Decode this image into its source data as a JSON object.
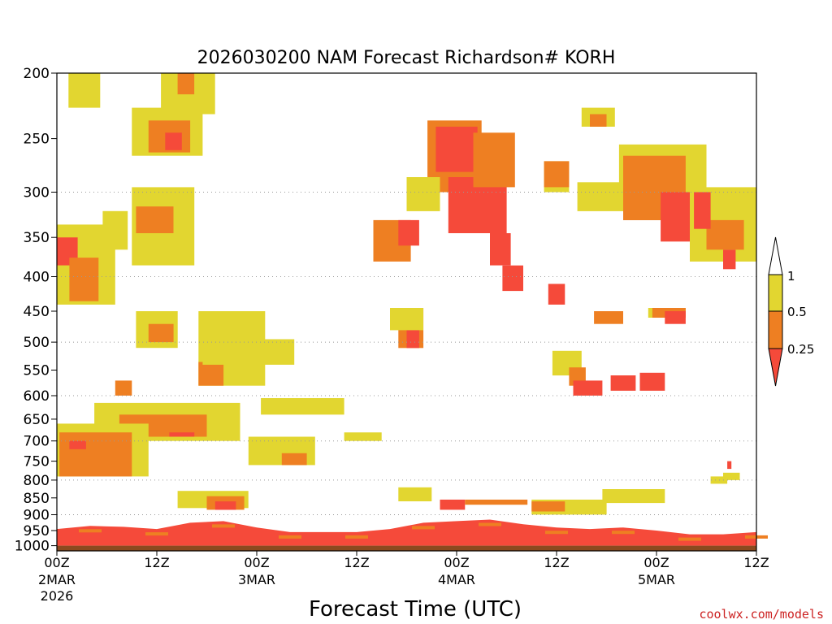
{
  "chart_data": {
    "type": "heatmap",
    "title": "2026030200 NAM Forecast Richardson# KORH",
    "xlabel": "Forecast Time (UTC)",
    "ylabel": "",
    "y_axis": {
      "reversed": true,
      "ylim": [
        1000,
        200
      ],
      "tick_labels": [
        "200",
        "250",
        "300",
        "350",
        "400",
        "450",
        "500",
        "550",
        "600",
        "650",
        "700",
        "750",
        "800",
        "850",
        "900",
        "950",
        "1000"
      ],
      "gridlines_at": [
        300,
        400,
        500,
        600,
        700,
        800,
        900
      ]
    },
    "x_axis": {
      "xlim_hours": [
        0,
        84
      ],
      "ticks": [
        {
          "hour": 0,
          "label": "00Z",
          "sub": "2MAR",
          "sub2": "2026"
        },
        {
          "hour": 12,
          "label": "12Z",
          "sub": "",
          "sub2": ""
        },
        {
          "hour": 24,
          "label": "00Z",
          "sub": "3MAR",
          "sub2": ""
        },
        {
          "hour": 36,
          "label": "12Z",
          "sub": "",
          "sub2": ""
        },
        {
          "hour": 48,
          "label": "00Z",
          "sub": "4MAR",
          "sub2": ""
        },
        {
          "hour": 60,
          "label": "12Z",
          "sub": "",
          "sub2": ""
        },
        {
          "hour": 72,
          "label": "00Z",
          "sub": "5MAR",
          "sub2": ""
        },
        {
          "hour": 84,
          "label": "12Z",
          "sub": "",
          "sub2": ""
        }
      ]
    },
    "colorbar": {
      "levels": [
        "1",
        "0.5",
        "0.25"
      ],
      "colors": {
        "high": "#ffffff",
        "mid_high": "#e2d630",
        "mid_low": "#ee7f22",
        "low": "#f54a3a",
        "ground": "#8b4a1f"
      }
    },
    "regions": [
      {
        "level": "yellow",
        "h0": 1.4,
        "h1": 5.2,
        "p0": 200,
        "p1": 225
      },
      {
        "level": "yellow",
        "h0": 9,
        "h1": 17.5,
        "p0": 225,
        "p1": 265
      },
      {
        "level": "orange",
        "h0": 11,
        "h1": 16,
        "p0": 235,
        "p1": 262
      },
      {
        "level": "red",
        "h0": 13,
        "h1": 15,
        "p0": 245,
        "p1": 260
      },
      {
        "level": "yellow",
        "h0": 12.5,
        "h1": 19,
        "p0": 200,
        "p1": 230
      },
      {
        "level": "orange",
        "h0": 14.5,
        "h1": 16.5,
        "p0": 200,
        "p1": 215
      },
      {
        "level": "yellow",
        "h0": 9,
        "h1": 16.5,
        "p0": 295,
        "p1": 385
      },
      {
        "level": "orange",
        "h0": 9.5,
        "h1": 14,
        "p0": 315,
        "p1": 345
      },
      {
        "level": "yellow",
        "h0": 0,
        "h1": 7,
        "p0": 335,
        "p1": 440
      },
      {
        "level": "red",
        "h0": 0,
        "h1": 2.5,
        "p0": 350,
        "p1": 385
      },
      {
        "level": "orange",
        "h0": 1.5,
        "h1": 5,
        "p0": 375,
        "p1": 435
      },
      {
        "level": "yellow",
        "h0": 5.5,
        "h1": 8.5,
        "p0": 320,
        "p1": 365
      },
      {
        "level": "yellow",
        "h0": 9.5,
        "h1": 14.5,
        "p0": 450,
        "p1": 510
      },
      {
        "level": "orange",
        "h0": 11,
        "h1": 14,
        "p0": 470,
        "p1": 500
      },
      {
        "level": "yellow",
        "h0": 17,
        "h1": 25,
        "p0": 450,
        "p1": 580
      },
      {
        "level": "orange",
        "h0": 17,
        "h1": 20,
        "p0": 535,
        "p1": 580
      },
      {
        "level": "yellow",
        "h0": 17.5,
        "h1": 28.5,
        "p0": 495,
        "p1": 540
      },
      {
        "level": "yellow",
        "h0": 24.5,
        "h1": 34.5,
        "p0": 605,
        "p1": 640
      },
      {
        "level": "yellow",
        "h0": 4.5,
        "h1": 22,
        "p0": 615,
        "p1": 700
      },
      {
        "level": "orange",
        "h0": 7.5,
        "h1": 18,
        "p0": 640,
        "p1": 690
      },
      {
        "level": "red",
        "h0": 13.5,
        "h1": 16.5,
        "p0": 680,
        "p1": 690
      },
      {
        "level": "yellow",
        "h0": 0,
        "h1": 11,
        "p0": 660,
        "p1": 790
      },
      {
        "level": "orange",
        "h0": 0.3,
        "h1": 9,
        "p0": 680,
        "p1": 790
      },
      {
        "level": "red",
        "h0": 1.5,
        "h1": 3.5,
        "p0": 700,
        "p1": 720
      },
      {
        "level": "yellow",
        "h0": 23,
        "h1": 31,
        "p0": 690,
        "p1": 760
      },
      {
        "level": "orange",
        "h0": 27,
        "h1": 30,
        "p0": 730,
        "p1": 760
      },
      {
        "level": "yellow",
        "h0": 34.5,
        "h1": 39,
        "p0": 680,
        "p1": 700
      },
      {
        "level": "yellow",
        "h0": 14.5,
        "h1": 23,
        "p0": 830,
        "p1": 880
      },
      {
        "level": "orange",
        "h0": 18,
        "h1": 22.5,
        "p0": 845,
        "p1": 885
      },
      {
        "level": "red",
        "h0": 19,
        "h1": 21.5,
        "p0": 860,
        "p1": 885
      },
      {
        "level": "orange",
        "h0": 44.5,
        "h1": 51,
        "p0": 235,
        "p1": 300
      },
      {
        "level": "red",
        "h0": 45.5,
        "h1": 50.5,
        "p0": 240,
        "p1": 280
      },
      {
        "level": "red",
        "h0": 47,
        "h1": 54,
        "p0": 285,
        "p1": 345
      },
      {
        "level": "orange",
        "h0": 50,
        "h1": 55,
        "p0": 245,
        "p1": 295
      },
      {
        "level": "red",
        "h0": 52,
        "h1": 54.5,
        "p0": 345,
        "p1": 385
      },
      {
        "level": "orange",
        "h0": 38,
        "h1": 42.5,
        "p0": 330,
        "p1": 380
      },
      {
        "level": "red",
        "h0": 41,
        "h1": 43.5,
        "p0": 330,
        "p1": 360
      },
      {
        "level": "yellow",
        "h0": 42,
        "h1": 46,
        "p0": 285,
        "p1": 320
      },
      {
        "level": "orange",
        "h0": 41,
        "h1": 44,
        "p0": 445,
        "p1": 510
      },
      {
        "level": "red",
        "h0": 42,
        "h1": 43.5,
        "p0": 460,
        "p1": 510
      },
      {
        "level": "yellow",
        "h0": 40,
        "h1": 44,
        "p0": 445,
        "p1": 480
      },
      {
        "level": "red",
        "h0": 53.5,
        "h1": 56,
        "p0": 385,
        "p1": 420
      },
      {
        "level": "yellow",
        "h0": 58.5,
        "h1": 61.5,
        "p0": 270,
        "p1": 300
      },
      {
        "level": "orange",
        "h0": 58.5,
        "h1": 61.5,
        "p0": 270,
        "p1": 295
      },
      {
        "level": "red",
        "h0": 59,
        "h1": 61,
        "p0": 410,
        "p1": 440
      },
      {
        "level": "yellow",
        "h0": 63,
        "h1": 67,
        "p0": 225,
        "p1": 240
      },
      {
        "level": "orange",
        "h0": 64,
        "h1": 66,
        "p0": 230,
        "p1": 240
      },
      {
        "level": "yellow",
        "h0": 62.5,
        "h1": 72,
        "p0": 290,
        "p1": 320
      },
      {
        "level": "yellow",
        "h0": 67.5,
        "h1": 78,
        "p0": 255,
        "p1": 310
      },
      {
        "level": "orange",
        "h0": 68,
        "h1": 75.5,
        "p0": 265,
        "p1": 330
      },
      {
        "level": "red",
        "h0": 72.5,
        "h1": 76.5,
        "p0": 300,
        "p1": 355
      },
      {
        "level": "yellow",
        "h0": 76,
        "h1": 84,
        "p0": 295,
        "p1": 380
      },
      {
        "level": "orange",
        "h0": 78,
        "h1": 82.5,
        "p0": 330,
        "p1": 365
      },
      {
        "level": "red",
        "h0": 76.5,
        "h1": 78.5,
        "p0": 300,
        "p1": 340
      },
      {
        "level": "red",
        "h0": 80,
        "h1": 81.5,
        "p0": 365,
        "p1": 390
      },
      {
        "level": "yellow",
        "h0": 71,
        "h1": 75.5,
        "p0": 445,
        "p1": 460
      },
      {
        "level": "orange",
        "h0": 71.5,
        "h1": 75.5,
        "p0": 445,
        "p1": 460
      },
      {
        "level": "red",
        "h0": 73,
        "h1": 75.5,
        "p0": 450,
        "p1": 470
      },
      {
        "level": "orange",
        "h0": 64.5,
        "h1": 68,
        "p0": 450,
        "p1": 470
      },
      {
        "level": "yellow",
        "h0": 59.5,
        "h1": 63,
        "p0": 515,
        "p1": 560
      },
      {
        "level": "orange",
        "h0": 61.5,
        "h1": 63.5,
        "p0": 545,
        "p1": 580
      },
      {
        "level": "red",
        "h0": 62,
        "h1": 65.5,
        "p0": 570,
        "p1": 600
      },
      {
        "level": "red",
        "h0": 66.5,
        "h1": 69.5,
        "p0": 560,
        "p1": 590
      },
      {
        "level": "red",
        "h0": 70,
        "h1": 73,
        "p0": 555,
        "p1": 590
      },
      {
        "level": "yellow",
        "h0": 57,
        "h1": 66,
        "p0": 855,
        "p1": 900
      },
      {
        "level": "orange",
        "h0": 57,
        "h1": 61,
        "p0": 860,
        "p1": 890
      },
      {
        "level": "yellow",
        "h0": 65.5,
        "h1": 73,
        "p0": 825,
        "p1": 865
      },
      {
        "level": "yellow",
        "h0": 78.5,
        "h1": 80.5,
        "p0": 790,
        "p1": 810
      },
      {
        "level": "red",
        "h0": 46,
        "h1": 49,
        "p0": 855,
        "p1": 885
      },
      {
        "level": "orange",
        "h0": 49,
        "h1": 56.5,
        "p0": 855,
        "p1": 870
      },
      {
        "level": "orange",
        "h0": 7,
        "h1": 9,
        "p0": 570,
        "p1": 600
      },
      {
        "level": "yellow",
        "h0": 41,
        "h1": 45,
        "p0": 820,
        "p1": 860
      },
      {
        "level": "red",
        "h0": 80.5,
        "h1": 81,
        "p0": 750,
        "p1": 770
      },
      {
        "level": "yellow",
        "h0": 80,
        "h1": 82,
        "p0": 780,
        "p1": 800
      }
    ],
    "surface_band": [
      {
        "hour": 0,
        "p": 945
      },
      {
        "hour": 4,
        "p": 935
      },
      {
        "hour": 8,
        "p": 938
      },
      {
        "hour": 12,
        "p": 945
      },
      {
        "hour": 16,
        "p": 925
      },
      {
        "hour": 20,
        "p": 920
      },
      {
        "hour": 24,
        "p": 940
      },
      {
        "hour": 28,
        "p": 955
      },
      {
        "hour": 32,
        "p": 955
      },
      {
        "hour": 36,
        "p": 955
      },
      {
        "hour": 40,
        "p": 945
      },
      {
        "hour": 44,
        "p": 925
      },
      {
        "hour": 48,
        "p": 920
      },
      {
        "hour": 52,
        "p": 915
      },
      {
        "hour": 56,
        "p": 930
      },
      {
        "hour": 60,
        "p": 940
      },
      {
        "hour": 64,
        "p": 945
      },
      {
        "hour": 68,
        "p": 940
      },
      {
        "hour": 72,
        "p": 950
      },
      {
        "hour": 76,
        "p": 962
      },
      {
        "hour": 80,
        "p": 962
      },
      {
        "hour": 84,
        "p": 955
      }
    ],
    "ground_pressure": 1000
  },
  "credit": "coolwx.com/models"
}
